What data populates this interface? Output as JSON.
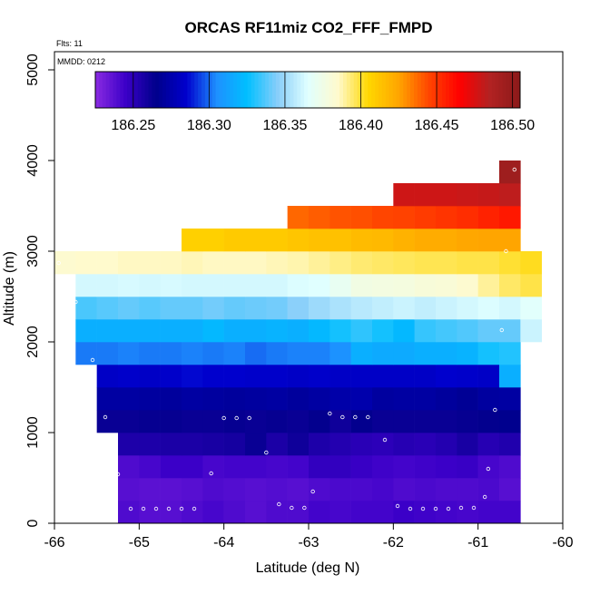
{
  "chart_data": {
    "type": "heatmap",
    "title": "ORCAS RF11miz CO2_FFF_FMPD",
    "note_flts": "Flts: 11",
    "note_mmdd": "MMDD: 0212",
    "xlabel": "Latitude (deg N)",
    "ylabel": "Altitude (m)",
    "xlim": [
      -66,
      -60
    ],
    "ylim": [
      0,
      5200
    ],
    "x_ticks": [
      -66,
      -65,
      -64,
      -63,
      -62,
      -61,
      -60
    ],
    "x_tick_labels": [
      "-66",
      "-65",
      "-64",
      "-63",
      "-62",
      "-61",
      "-60"
    ],
    "y_ticks": [
      0,
      1000,
      2000,
      3000,
      4000,
      5000
    ],
    "y_tick_labels": [
      "0",
      "1000",
      "2000",
      "3000",
      "4000",
      "5000"
    ],
    "colorbar": {
      "range": [
        186.225,
        186.505
      ],
      "ticks": [
        186.25,
        186.3,
        186.35,
        186.4,
        186.45,
        186.5
      ],
      "tick_labels": [
        "186.25",
        "186.30",
        "186.35",
        "186.40",
        "186.45",
        "186.50"
      ],
      "colors": [
        "#8a2be2",
        "#3b00c8",
        "#00008b",
        "#0000cd",
        "#1e90ff",
        "#00bfff",
        "#87cefa",
        "#e0ffff",
        "#fffacd",
        "#ffd700",
        "#ffa500",
        "#ff4500",
        "#ff0000",
        "#b22222",
        "#8b1a1a"
      ]
    },
    "cell_width_deg": 0.25,
    "cell_height_m": 250,
    "rows": [
      {
        "alt_bottom": 0,
        "lat_start": -65.25,
        "values": [
          186.24,
          186.238,
          186.238,
          186.24,
          186.242,
          186.24,
          186.238,
          186.24,
          186.24,
          186.243,
          186.242,
          186.243,
          186.243,
          186.245,
          186.244,
          186.243,
          186.242,
          186.243,
          186.243
        ]
      },
      {
        "alt_bottom": 250,
        "lat_start": -65.25,
        "values": [
          186.238,
          186.237,
          186.237,
          186.238,
          186.24,
          186.239,
          186.238,
          186.239,
          186.238,
          186.24,
          186.241,
          186.241,
          186.242,
          186.24,
          186.241,
          186.24,
          186.24,
          186.241,
          186.238
        ]
      },
      {
        "alt_bottom": 500,
        "lat_start": -65.25,
        "values": [
          186.24,
          186.242,
          186.245,
          186.245,
          186.242,
          186.243,
          186.243,
          186.242,
          186.243,
          186.248,
          186.248,
          186.246,
          186.244,
          186.243,
          186.244,
          186.245,
          186.246,
          186.242,
          186.24
        ]
      },
      {
        "alt_bottom": 750,
        "lat_start": -65.25,
        "values": [
          186.255,
          186.255,
          186.256,
          186.256,
          186.257,
          186.258,
          186.262,
          186.256,
          186.26,
          186.255,
          186.253,
          186.251,
          186.25,
          186.252,
          186.251,
          186.253,
          186.257,
          186.252,
          186.254
        ]
      },
      {
        "alt_bottom": 1000,
        "lat_start": -65.5,
        "values": [
          186.262,
          186.262,
          186.263,
          186.263,
          186.262,
          186.262,
          186.263,
          186.262,
          186.263,
          186.262,
          186.264,
          186.26,
          186.264,
          186.262,
          186.262,
          186.262,
          186.262,
          186.263,
          186.264,
          186.266
        ]
      },
      {
        "alt_bottom": 1250,
        "lat_start": -65.5,
        "values": [
          186.272,
          186.272,
          186.271,
          186.27,
          186.272,
          186.271,
          186.27,
          186.271,
          186.272,
          186.27,
          186.272,
          186.274,
          186.275,
          186.271,
          186.272,
          186.272,
          186.27,
          186.268,
          186.271,
          186.272
        ]
      },
      {
        "alt_bottom": 1500,
        "lat_start": -65.5,
        "values": [
          186.283,
          186.284,
          186.283,
          186.284,
          186.286,
          186.285,
          186.285,
          186.284,
          186.284,
          186.283,
          186.284,
          186.283,
          186.283,
          186.283,
          186.283,
          186.283,
          186.285,
          186.284,
          186.283,
          186.318
        ]
      },
      {
        "alt_bottom": 1750,
        "lat_start": -65.75,
        "values": [
          186.302,
          186.302,
          186.303,
          186.302,
          186.302,
          186.303,
          186.302,
          186.303,
          186.3,
          186.302,
          186.303,
          186.303,
          186.306,
          186.318,
          186.316,
          186.316,
          186.318,
          186.318,
          186.32,
          186.328,
          186.33
        ]
      },
      {
        "alt_bottom": 2000,
        "lat_start": -65.75,
        "values": [
          186.318,
          186.318,
          186.318,
          186.318,
          186.318,
          186.318,
          186.322,
          186.318,
          186.318,
          186.32,
          186.318,
          186.322,
          186.328,
          186.332,
          186.328,
          186.322,
          186.333,
          186.335,
          186.337,
          186.34,
          186.34,
          186.36
        ]
      },
      {
        "alt_bottom": 2250,
        "lat_start": -65.75,
        "values": [
          186.336,
          186.338,
          186.34,
          186.338,
          186.34,
          186.34,
          186.342,
          186.34,
          186.341,
          186.342,
          186.346,
          186.35,
          186.353,
          186.356,
          186.358,
          186.36,
          186.358,
          186.36,
          186.362,
          186.364,
          186.362,
          186.366
        ]
      },
      {
        "alt_bottom": 2500,
        "lat_start": -65.75,
        "values": [
          186.362,
          186.362,
          186.363,
          186.362,
          186.363,
          186.362,
          186.362,
          186.362,
          186.362,
          186.362,
          186.364,
          186.365,
          186.37,
          186.376,
          186.377,
          186.378,
          186.38,
          186.381,
          186.384,
          186.39,
          186.395,
          186.398
        ]
      },
      {
        "alt_bottom": 2750,
        "lat_start": -66.0,
        "values": [
          186.384,
          186.385,
          186.385,
          186.386,
          186.386,
          186.386,
          186.387,
          186.386,
          186.386,
          186.386,
          186.387,
          186.388,
          186.39,
          186.392,
          186.394,
          186.395,
          186.396,
          186.397,
          186.397,
          186.398,
          186.398,
          186.4,
          186.402
        ]
      },
      {
        "alt_bottom": 3000,
        "lat_start": -64.5,
        "values": [
          186.408,
          186.408,
          186.41,
          186.41,
          186.41,
          186.412,
          186.414,
          186.414,
          186.416,
          186.417,
          186.42,
          186.422,
          186.422,
          186.424,
          186.425,
          186.425
        ]
      },
      {
        "alt_bottom": 3250,
        "lat_start": -63.25,
        "values": [
          186.438,
          186.44,
          186.442,
          186.443,
          186.445,
          186.446,
          186.448,
          186.45,
          186.452,
          186.455,
          186.458
        ]
      },
      {
        "alt_bottom": 3500,
        "lat_start": -62.0,
        "values": [
          186.478,
          186.478,
          186.478,
          186.479,
          186.48,
          186.482
        ]
      },
      {
        "alt_bottom": 3750,
        "lat_start": -60.75,
        "values": [
          186.495
        ]
      }
    ],
    "points": [
      {
        "lat": -65.4,
        "alt": 1170
      },
      {
        "lat": -65.55,
        "alt": 1800
      },
      {
        "lat": -65.75,
        "alt": 2440
      },
      {
        "lat": -65.95,
        "alt": 2870
      },
      {
        "lat": -65.25,
        "alt": 540
      },
      {
        "lat": -65.1,
        "alt": 160
      },
      {
        "lat": -64.95,
        "alt": 160
      },
      {
        "lat": -64.8,
        "alt": 160
      },
      {
        "lat": -64.65,
        "alt": 160
      },
      {
        "lat": -64.5,
        "alt": 160
      },
      {
        "lat": -64.35,
        "alt": 160
      },
      {
        "lat": -64.15,
        "alt": 550
      },
      {
        "lat": -64.0,
        "alt": 1160
      },
      {
        "lat": -63.85,
        "alt": 1160
      },
      {
        "lat": -63.7,
        "alt": 1160
      },
      {
        "lat": -63.5,
        "alt": 780
      },
      {
        "lat": -63.35,
        "alt": 210
      },
      {
        "lat": -63.2,
        "alt": 170
      },
      {
        "lat": -63.05,
        "alt": 170
      },
      {
        "lat": -62.95,
        "alt": 350
      },
      {
        "lat": -62.75,
        "alt": 1210
      },
      {
        "lat": -62.6,
        "alt": 1170
      },
      {
        "lat": -62.45,
        "alt": 1170
      },
      {
        "lat": -62.3,
        "alt": 1170
      },
      {
        "lat": -62.1,
        "alt": 920
      },
      {
        "lat": -61.95,
        "alt": 190
      },
      {
        "lat": -61.8,
        "alt": 160
      },
      {
        "lat": -61.65,
        "alt": 160
      },
      {
        "lat": -61.5,
        "alt": 160
      },
      {
        "lat": -61.35,
        "alt": 160
      },
      {
        "lat": -61.2,
        "alt": 170
      },
      {
        "lat": -61.05,
        "alt": 170
      },
      {
        "lat": -60.92,
        "alt": 290
      },
      {
        "lat": -60.88,
        "alt": 600
      },
      {
        "lat": -60.8,
        "alt": 1250
      },
      {
        "lat": -60.72,
        "alt": 2130
      },
      {
        "lat": -60.67,
        "alt": 3000
      },
      {
        "lat": -60.57,
        "alt": 3900
      }
    ]
  }
}
